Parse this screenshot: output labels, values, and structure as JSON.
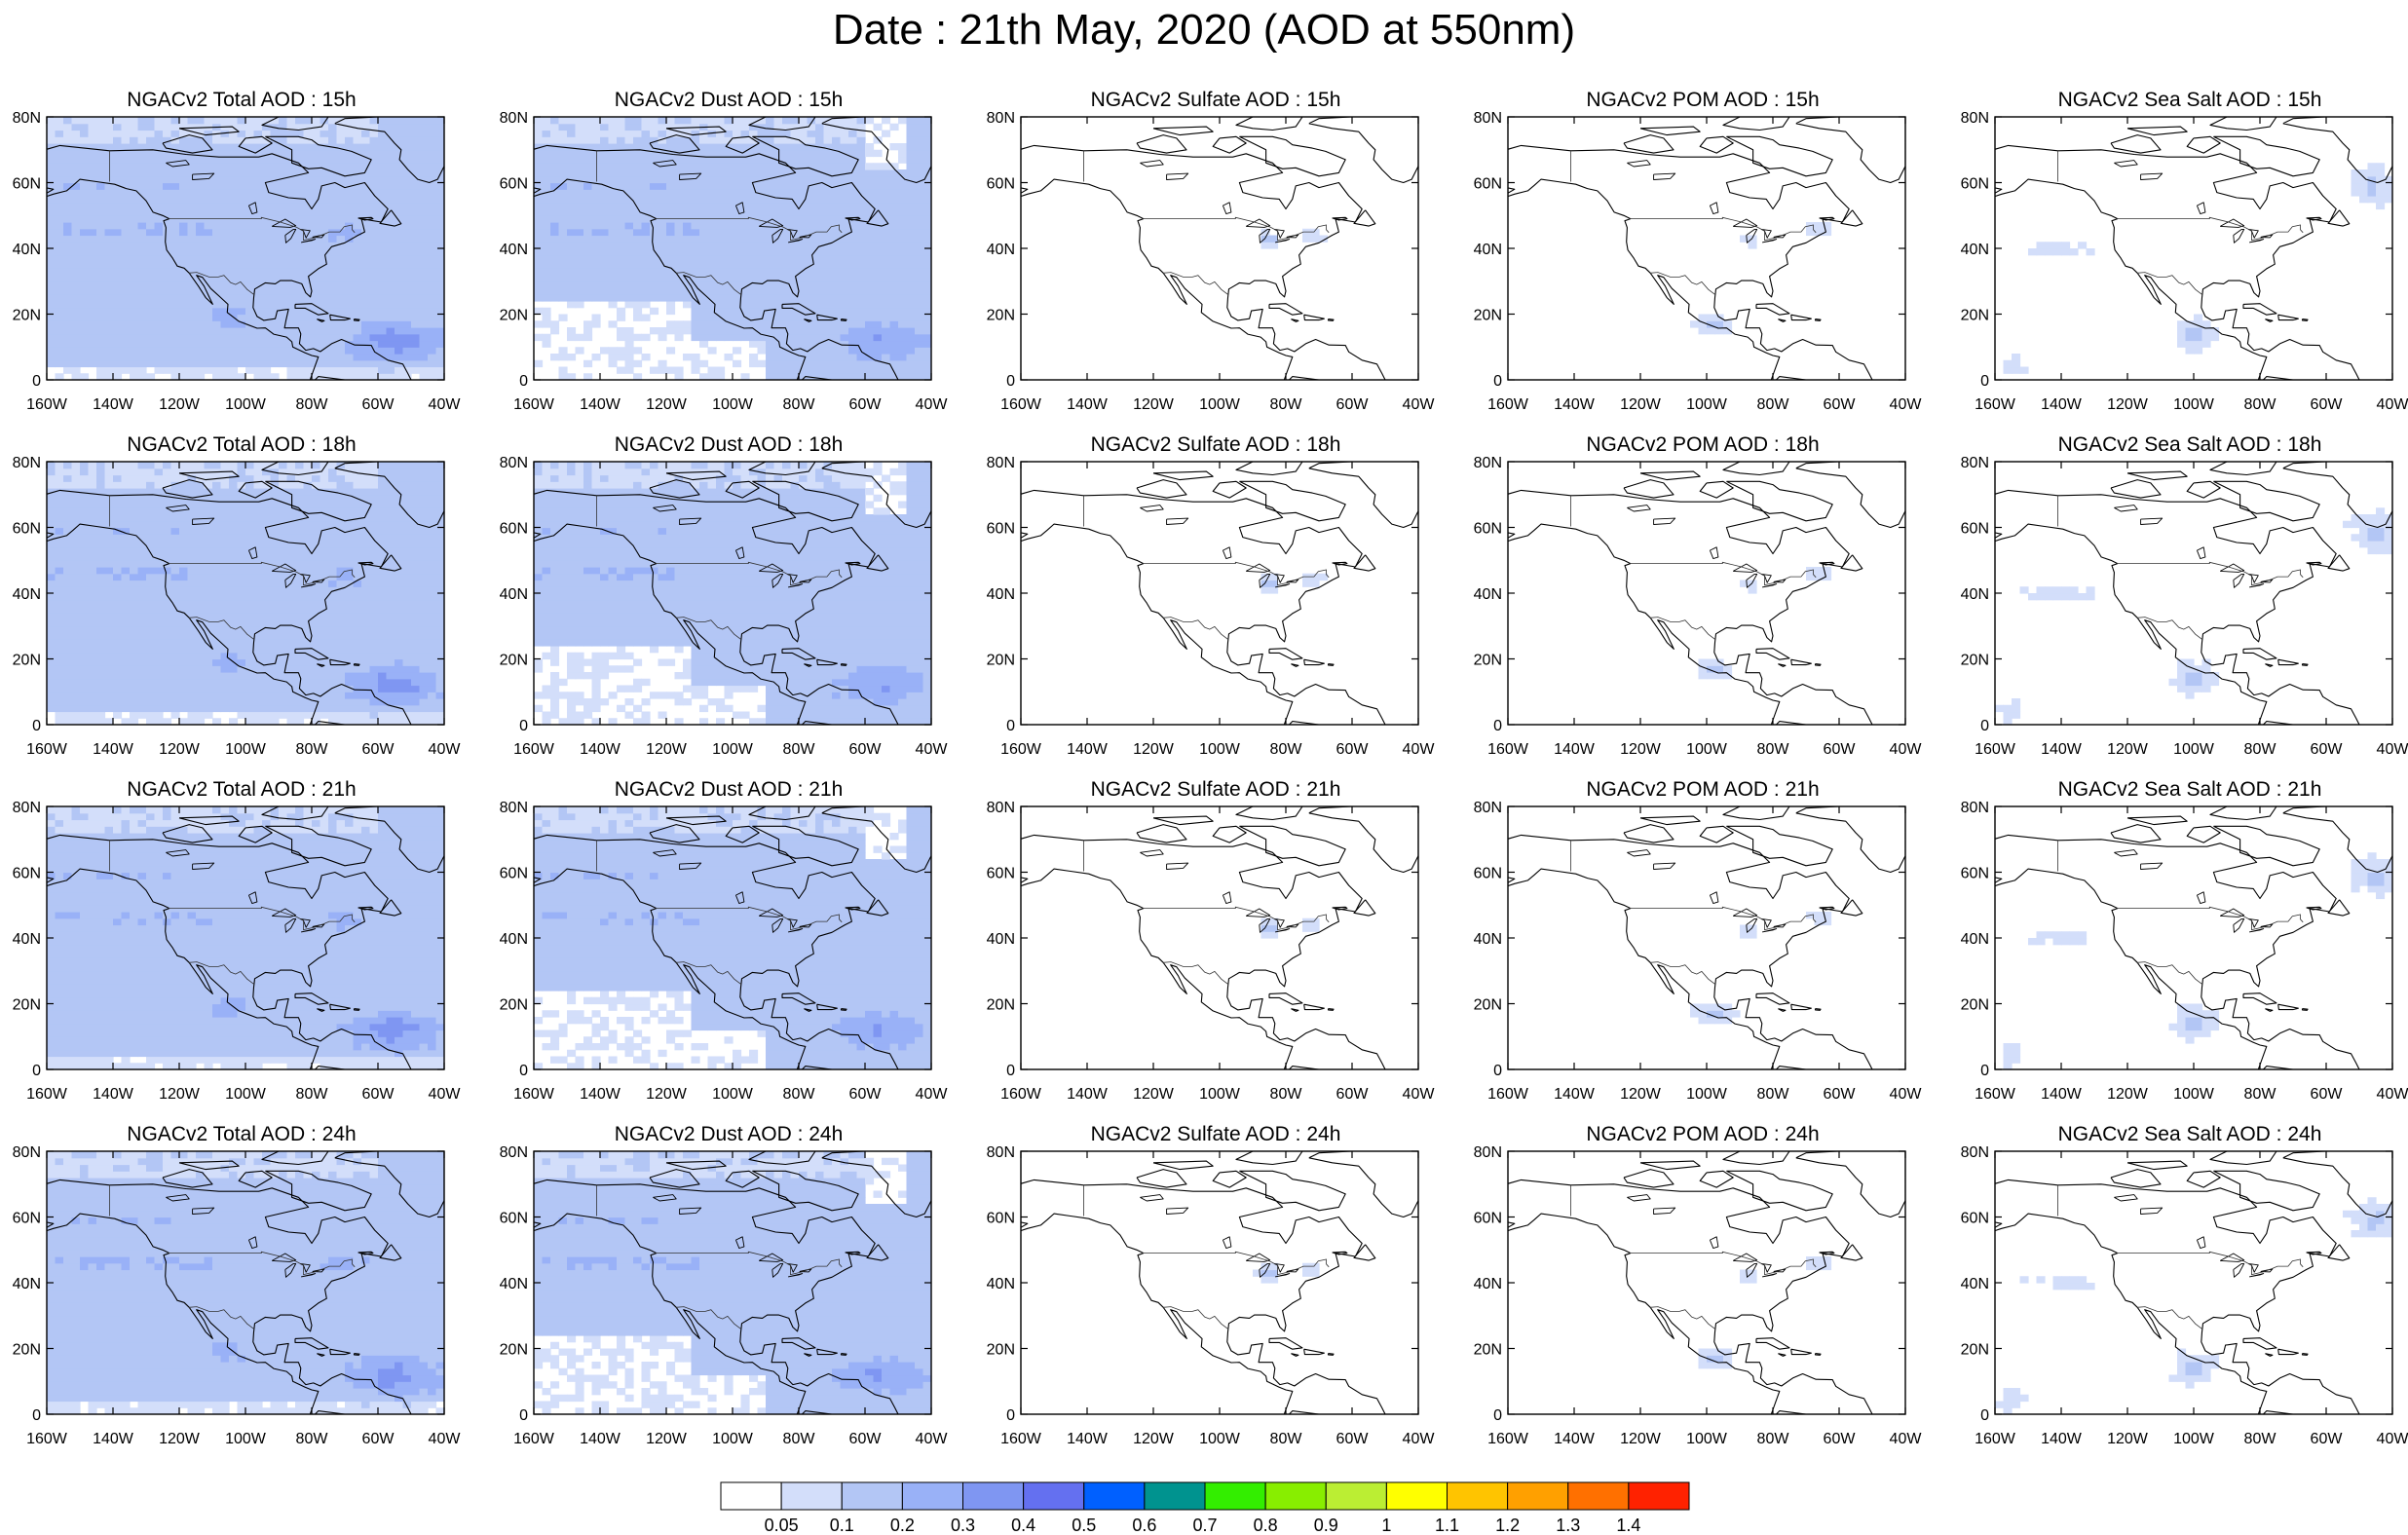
{
  "title": "Date : 21th May, 2020 (AOD at 550nm)",
  "x_ticks": [
    "160W",
    "140W",
    "120W",
    "100W",
    "80W",
    "60W",
    "40W"
  ],
  "y_ticks": [
    "0",
    "20N",
    "40N",
    "60N",
    "80N"
  ],
  "lon_range": [
    -160,
    -40
  ],
  "lat_range": [
    0,
    80
  ],
  "columns": [
    {
      "species": "total",
      "titles": [
        "NGACv2 Total AOD : 15h",
        "NGACv2 Total AOD : 18h",
        "NGACv2 Total AOD : 21h",
        "NGACv2 Total AOD : 24h"
      ]
    },
    {
      "species": "dust",
      "titles": [
        "NGACv2 Dust AOD : 15h",
        "NGACv2 Dust AOD : 18h",
        "NGACv2 Dust AOD : 21h",
        "NGACv2 Dust AOD : 24h"
      ]
    },
    {
      "species": "sulfate",
      "titles": [
        "NGACv2 Sulfate AOD : 15h",
        "NGACv2 Sulfate AOD : 18h",
        "NGACv2 Sulfate AOD : 21h",
        "NGACv2 Sulfate AOD : 24h"
      ]
    },
    {
      "species": "pom",
      "titles": [
        "NGACv2 POM AOD : 15h",
        "NGACv2 POM AOD : 18h",
        "NGACv2 POM AOD : 21h",
        "NGACv2 POM AOD : 24h"
      ]
    },
    {
      "species": "seasalt",
      "titles": [
        "NGACv2 Sea Salt AOD : 15h",
        "NGACv2 Sea Salt AOD : 18h",
        "NGACv2 Sea Salt AOD : 21h",
        "NGACv2 Sea Salt  AOD : 24h"
      ]
    }
  ],
  "colorbar": {
    "labels": [
      "0.05",
      "0.1",
      "0.2",
      "0.3",
      "0.4",
      "0.5",
      "0.6",
      "0.7",
      "0.8",
      "0.9",
      "1",
      "1.1",
      "1.2",
      "1.3",
      "1.4"
    ],
    "colors": [
      "#ffffff",
      "#d3defa",
      "#b3c6f5",
      "#99b1f7",
      "#7f96f2",
      "#6470f0",
      "#0060ff",
      "#00938f",
      "#33ee00",
      "#88ee00",
      "#bbee33",
      "#ffff00",
      "#ffc400",
      "#ffa000",
      "#ff7000",
      "#ff2200"
    ]
  }
}
